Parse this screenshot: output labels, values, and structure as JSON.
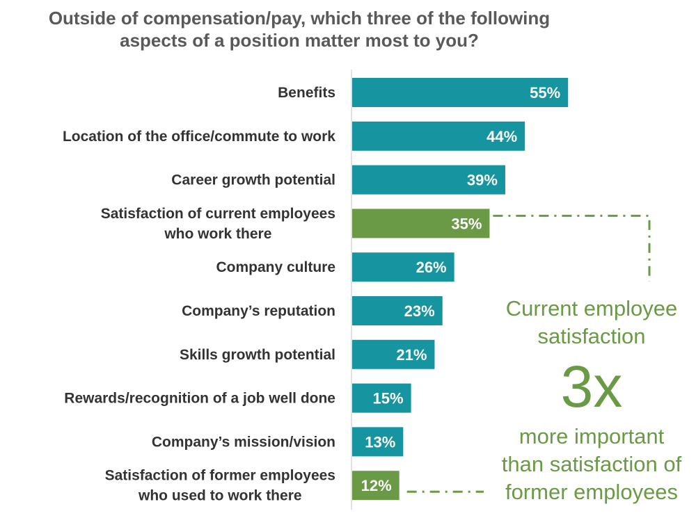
{
  "chart_data": {
    "type": "bar",
    "orientation": "horizontal",
    "title_lines": [
      "Outside of compensation/pay, which three of the following",
      "aspects of a position matter most to you?"
    ],
    "categories": [
      [
        "Benefits"
      ],
      [
        "Location of the office/commute to work"
      ],
      [
        "Career growth potential"
      ],
      [
        "Satisfaction of current employees",
        "who work there"
      ],
      [
        "Company culture"
      ],
      [
        "Company’s reputation"
      ],
      [
        "Skills growth potential"
      ],
      [
        "Rewards/recognition of a job well done"
      ],
      [
        "Company’s mission/vision"
      ],
      [
        "Satisfaction of former employees",
        "who used to work there"
      ]
    ],
    "values": [
      55,
      44,
      39,
      35,
      26,
      23,
      21,
      15,
      13,
      12
    ],
    "value_labels": [
      "55%",
      "44%",
      "39%",
      "35%",
      "26%",
      "23%",
      "21%",
      "15%",
      "13%",
      "12%"
    ],
    "highlighted": [
      3,
      9
    ],
    "xlim": [
      0,
      100
    ],
    "grid": false,
    "legend": "none",
    "colors": {
      "bar": "#16949f",
      "highlight": "#6a9a45",
      "title": "#595959",
      "label": "#333333",
      "axis": "#d9d9d9",
      "value_label": "#ffffff"
    }
  },
  "callout": {
    "line1": "Current employee",
    "line2": "satisfaction",
    "big": "3x",
    "line3": "more important",
    "line4": "than satisfaction of",
    "line5": "former employees"
  }
}
